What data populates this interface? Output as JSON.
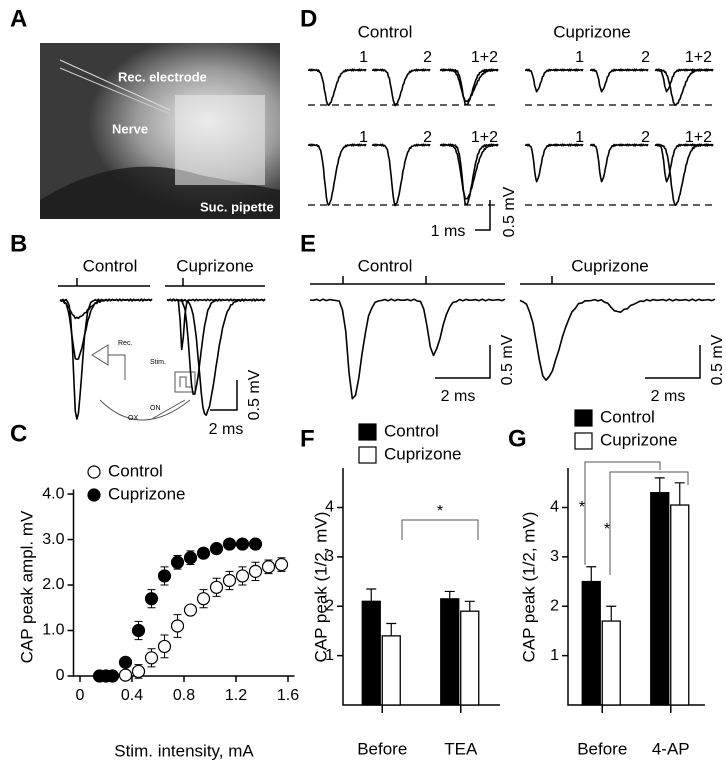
{
  "panel_labels": [
    "A",
    "B",
    "C",
    "D",
    "E",
    "F",
    "G"
  ],
  "panel_a": {
    "labels": [
      "Rec. electrode",
      "Nerve",
      "Suc. pipette"
    ]
  },
  "panel_b": {
    "conditions": [
      "Control",
      "Cuprizone"
    ],
    "scale": [
      "0.5 mV",
      "2 ms"
    ],
    "schematic": [
      "Rec.",
      "Stim.",
      "OX",
      "ON"
    ]
  },
  "panel_d": {
    "conditions": [
      "Control",
      "Cuprizone"
    ],
    "trace_labels": [
      "1",
      "2",
      "1+2"
    ],
    "scale": [
      "1 ms",
      "0.5 mV"
    ]
  },
  "panel_e": {
    "conditions": [
      "Control",
      "Cuprizone"
    ],
    "scale": [
      "0.5 mV",
      "2 ms"
    ]
  },
  "chart_data": [
    {
      "type": "scatter",
      "xlabel": "Stim. intensity, mA",
      "ylabel": "CAP peak ampl. mV",
      "xlim": [
        -0.05,
        1.65
      ],
      "ylim": [
        0,
        4.1
      ],
      "xticks": [
        0,
        0.4,
        0.8,
        1.2,
        1.6
      ],
      "yticks": [
        0,
        {
          "value": 1,
          "label": "1.0"
        },
        {
          "value": 2,
          "label": "2.0"
        },
        {
          "value": 3,
          "label": "3.0"
        },
        {
          "value": 4,
          "label": "4.0"
        }
      ],
      "legend": "top-left",
      "series": [
        {
          "name": "Control",
          "color": "#000000",
          "filled": false,
          "x": [
            0.35,
            0.45,
            0.55,
            0.65,
            0.75,
            0.85,
            0.95,
            1.05,
            1.15,
            1.25,
            1.35,
            1.45,
            1.55
          ],
          "values": [
            0.02,
            0.1,
            0.4,
            0.65,
            1.1,
            1.45,
            1.7,
            1.95,
            2.1,
            2.2,
            2.3,
            2.4,
            2.45
          ],
          "errors": [
            0.05,
            0.15,
            0.2,
            0.25,
            0.25,
            0.1,
            0.2,
            0.2,
            0.2,
            0.2,
            0.2,
            0.15,
            0.15
          ]
        },
        {
          "name": "Cuprizone",
          "color": "#000000",
          "filled": true,
          "x": [
            0.15,
            0.2,
            0.25,
            0.35,
            0.45,
            0.55,
            0.65,
            0.75,
            0.85,
            0.95,
            1.05,
            1.15,
            1.25,
            1.35
          ],
          "values": [
            0,
            0,
            0,
            0.3,
            1.0,
            1.7,
            2.2,
            2.5,
            2.6,
            2.7,
            2.8,
            2.9,
            2.9,
            2.9
          ],
          "errors": [
            0.02,
            0.02,
            0.02,
            0.1,
            0.2,
            0.2,
            0.2,
            0.15,
            0.15,
            0.1,
            0.1,
            0.1,
            0.1,
            0.1
          ]
        }
      ]
    },
    {
      "type": "bar",
      "ylabel": "CAP peak (1/2, mV)",
      "categories": [
        "Before",
        "TEA"
      ],
      "ylim": [
        0,
        4.8
      ],
      "yticks": [
        1,
        2,
        3,
        4
      ],
      "legend": "top-right",
      "annotations": [
        "*"
      ],
      "series": [
        {
          "name": "Control",
          "color": "#000000",
          "values": [
            2.1,
            2.15
          ],
          "errors": [
            0.25,
            0.15
          ]
        },
        {
          "name": "Cuprizone",
          "color": "#ffffff",
          "values": [
            1.4,
            1.9
          ],
          "errors": [
            0.25,
            0.2
          ]
        }
      ]
    },
    {
      "type": "bar",
      "ylabel": "CAP peak (1/2, mV)",
      "categories": [
        "Before",
        "4-AP"
      ],
      "ylim": [
        0,
        4.8
      ],
      "yticks": [
        1,
        2,
        3,
        4
      ],
      "legend": "top-left",
      "annotations": [
        "*",
        "*"
      ],
      "series": [
        {
          "name": "Control",
          "color": "#000000",
          "values": [
            2.5,
            4.3
          ],
          "errors": [
            0.3,
            0.3
          ]
        },
        {
          "name": "Cuprizone",
          "color": "#ffffff",
          "values": [
            1.7,
            4.05
          ],
          "errors": [
            0.3,
            0.45
          ]
        }
      ]
    }
  ]
}
